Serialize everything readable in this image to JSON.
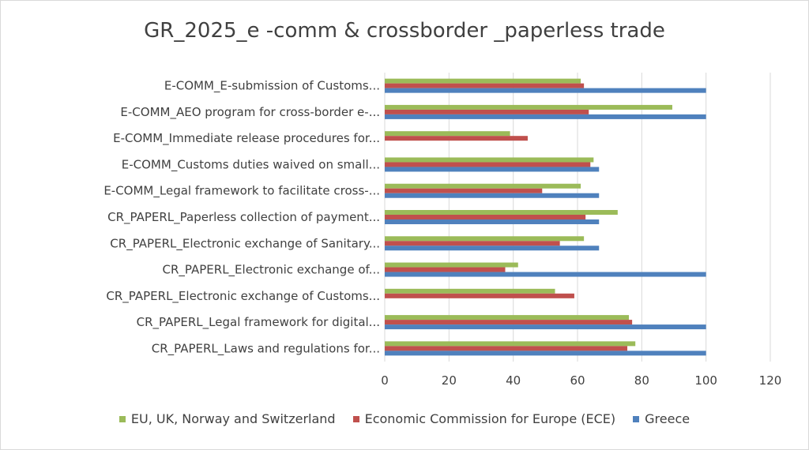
{
  "chart_data": {
    "type": "bar",
    "orientation": "horizontal",
    "title": "GR_2025_e -comm & crossborder _paperless trade",
    "categories": [
      "E-COMM_E-submission of Customs...",
      "E-COMM_AEO program for cross-border e-...",
      "E-COMM_Immediate release procedures for...",
      "E-COMM_Customs duties waived on small...",
      "E-COMM_Legal framework to facilitate cross-...",
      "CR_PAPERL_Paperless collection of payment...",
      "CR_PAPERL_Electronic exchange of Sanitary...",
      "CR_PAPERL_Electronic exchange of...",
      "CR_PAPERL_Electronic exchange of Customs...",
      "CR_PAPERL_Legal framework for digital...",
      "CR_PAPERL_Laws and regulations for..."
    ],
    "series": [
      {
        "name": "EU, UK, Norway and Switzerland",
        "color": "#9bbb59",
        "values": [
          61,
          89.5,
          39,
          65,
          61,
          72.5,
          62,
          41.5,
          53,
          76,
          78
        ]
      },
      {
        "name": "Economic Commission for Europe (ECE)",
        "color": "#c0504d",
        "values": [
          62,
          63.5,
          44.5,
          64,
          49,
          62.5,
          54.5,
          37.5,
          59,
          77,
          75.5
        ]
      },
      {
        "name": "Greece",
        "color": "#4f81bd",
        "values": [
          100,
          100,
          0,
          66.7,
          66.7,
          66.7,
          66.7,
          100,
          0,
          100,
          100
        ]
      }
    ],
    "x_ticks": [
      "0",
      "20",
      "40",
      "60",
      "80",
      "100",
      "120"
    ],
    "xlim": [
      0,
      120
    ],
    "grid": true,
    "legend_position": "bottom"
  }
}
